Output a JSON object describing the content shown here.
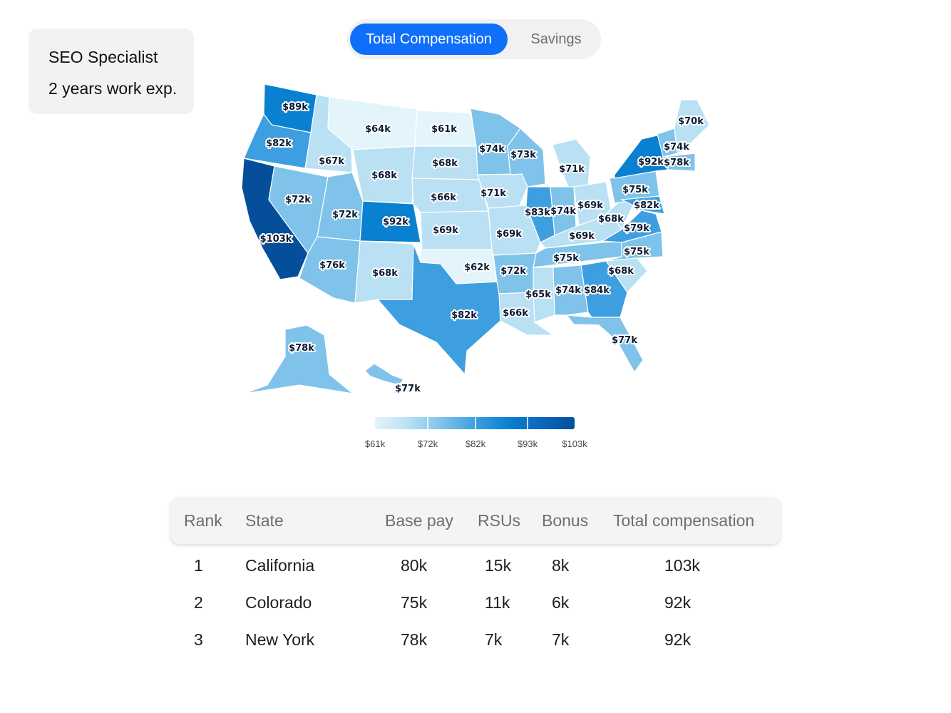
{
  "profile": {
    "title": "SEO Specialist",
    "experience": "2 years work exp."
  },
  "toggle": {
    "options": [
      "Total Compensation",
      "Savings"
    ],
    "selected": "Total Compensation"
  },
  "colors": {
    "accent": "#0f6ffb",
    "scale": [
      "#e4f4fb",
      "#b9e0f3",
      "#7fc3ea",
      "#3d9fdf",
      "#0a80d0",
      "#0b66bb",
      "#054f9a"
    ]
  },
  "map": {
    "metric": "Total Compensation",
    "states": [
      {
        "code": "WA",
        "value": 89,
        "label": "$89k"
      },
      {
        "code": "OR",
        "value": 82,
        "label": "$82k"
      },
      {
        "code": "CA",
        "value": 103,
        "label": "$103k"
      },
      {
        "code": "NV",
        "value": 72,
        "label": "$72k"
      },
      {
        "code": "ID",
        "value": 67,
        "label": "$67k"
      },
      {
        "code": "MT",
        "value": 64,
        "label": "$64k"
      },
      {
        "code": "WY",
        "value": 68,
        "label": "$68k"
      },
      {
        "code": "UT",
        "value": 72,
        "label": "$72k"
      },
      {
        "code": "AZ",
        "value": 76,
        "label": "$76k"
      },
      {
        "code": "CO",
        "value": 92,
        "label": "$92k"
      },
      {
        "code": "NM",
        "value": 68,
        "label": "$68k"
      },
      {
        "code": "ND",
        "value": 61,
        "label": "$61k"
      },
      {
        "code": "SD",
        "value": 68,
        "label": "$68k"
      },
      {
        "code": "NE",
        "value": 66,
        "label": "$66k"
      },
      {
        "code": "KS",
        "value": 69,
        "label": "$69k"
      },
      {
        "code": "OK",
        "value": 62,
        "label": "$62k"
      },
      {
        "code": "TX",
        "value": 82,
        "label": "$82k"
      },
      {
        "code": "MN",
        "value": 74,
        "label": "$74k"
      },
      {
        "code": "IA",
        "value": 71,
        "label": "$71k"
      },
      {
        "code": "MO",
        "value": 69,
        "label": "$69k"
      },
      {
        "code": "AR",
        "value": 72,
        "label": "$72k"
      },
      {
        "code": "LA",
        "value": 66,
        "label": "$66k"
      },
      {
        "code": "WI",
        "value": 73,
        "label": "$73k"
      },
      {
        "code": "IL",
        "value": 83,
        "label": "$83k"
      },
      {
        "code": "MI",
        "value": 71,
        "label": "$71k"
      },
      {
        "code": "IN",
        "value": 74,
        "label": "$74k"
      },
      {
        "code": "OH",
        "value": 69,
        "label": "$69k"
      },
      {
        "code": "KY",
        "value": 69,
        "label": "$69k"
      },
      {
        "code": "TN",
        "value": 75,
        "label": "$75k"
      },
      {
        "code": "MS",
        "value": 65,
        "label": "$65k"
      },
      {
        "code": "AL",
        "value": 74,
        "label": "$74k"
      },
      {
        "code": "GA",
        "value": 84,
        "label": "$84k"
      },
      {
        "code": "FL",
        "value": 77,
        "label": "$77k"
      },
      {
        "code": "SC",
        "value": 68,
        "label": "$68k"
      },
      {
        "code": "NC",
        "value": 75,
        "label": "$75k"
      },
      {
        "code": "VA",
        "value": 79,
        "label": "$79k"
      },
      {
        "code": "WV",
        "value": 68,
        "label": "$68k"
      },
      {
        "code": "PA",
        "value": 75,
        "label": "$75k"
      },
      {
        "code": "MD",
        "value": 82,
        "label": "$82k"
      },
      {
        "code": "NY",
        "value": 92,
        "label": "$92k"
      },
      {
        "code": "MA",
        "value": 78,
        "label": "$78k"
      },
      {
        "code": "NH",
        "value": 74,
        "label": "$74k"
      },
      {
        "code": "ME",
        "value": 70,
        "label": "$70k"
      },
      {
        "code": "AK",
        "value": 78,
        "label": "$78k"
      },
      {
        "code": "HI",
        "value": 77,
        "label": "$77k"
      }
    ],
    "legend": {
      "ticks": [
        "$61k",
        "$72k",
        "$82k",
        "$93k",
        "$103k"
      ],
      "min": 61,
      "max": 103
    }
  },
  "table": {
    "headers": [
      "Rank",
      "State",
      "Base pay",
      "RSUs",
      "Bonus",
      "Total compensation"
    ],
    "rows": [
      [
        "1",
        "California",
        "80k",
        "15k",
        "8k",
        "103k"
      ],
      [
        "2",
        "Colorado",
        "75k",
        "11k",
        "6k",
        "92k"
      ],
      [
        "3",
        "New York",
        "78k",
        "7k",
        "7k",
        "92k"
      ]
    ]
  }
}
